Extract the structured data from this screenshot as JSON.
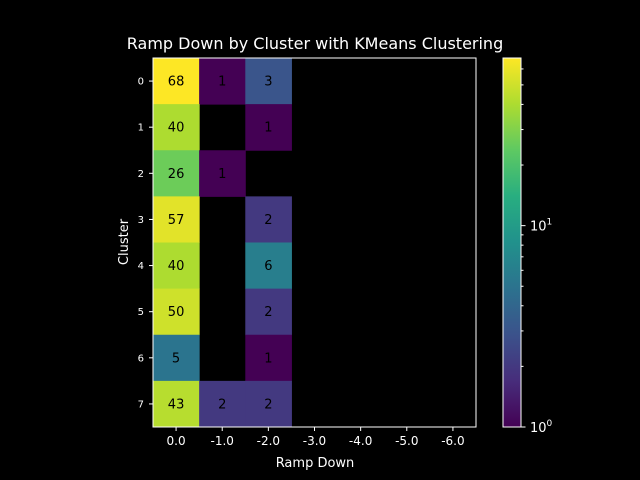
{
  "chart_data": {
    "type": "heatmap",
    "title": "Ramp Down by Cluster with KMeans Clustering",
    "xlabel": "Ramp Down",
    "ylabel": "Cluster",
    "x_categories": [
      "0.0",
      "-1.0",
      "-2.0",
      "-3.0",
      "-4.0",
      "-5.0",
      "-6.0"
    ],
    "y_categories": [
      "0",
      "1",
      "2",
      "3",
      "4",
      "5",
      "6",
      "7"
    ],
    "values": [
      [
        68,
        1,
        3,
        null,
        null,
        null,
        null
      ],
      [
        40,
        null,
        1,
        null,
        null,
        null,
        null
      ],
      [
        26,
        1,
        null,
        null,
        null,
        null,
        null
      ],
      [
        57,
        null,
        2,
        null,
        null,
        null,
        null
      ],
      [
        40,
        null,
        6,
        null,
        null,
        null,
        null
      ],
      [
        50,
        null,
        2,
        null,
        null,
        null,
        null
      ],
      [
        5,
        null,
        1,
        null,
        null,
        null,
        null
      ],
      [
        43,
        2,
        2,
        null,
        null,
        null,
        null
      ]
    ],
    "color_scale": "log",
    "colormap": "viridis",
    "vmin": 1,
    "vmax": 68,
    "colorbar": {
      "ticks": [
        {
          "value": 1,
          "base": "10",
          "exp": "0"
        },
        {
          "value": 10,
          "base": "10",
          "exp": "1"
        }
      ]
    },
    "background_color": "#000000",
    "text_color": "#000000"
  }
}
